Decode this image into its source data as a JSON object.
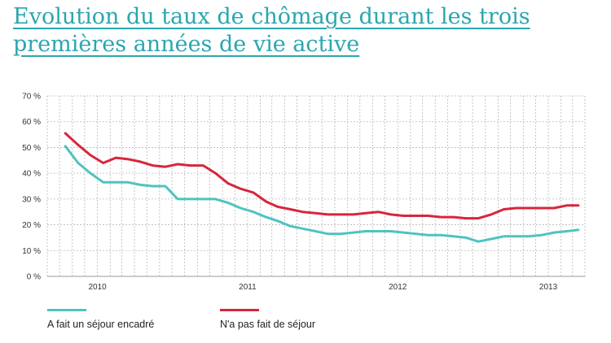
{
  "title_line1": "Evolution du taux de chômage durant les trois",
  "title_line2": "premières années de vie active",
  "colors": {
    "title": "#2aa6b0",
    "series_a": "#4fc3c1",
    "series_b": "#d7263d",
    "grid": "#b8b8b8"
  },
  "chart_data": {
    "type": "line",
    "ylim": [
      0,
      70
    ],
    "yticks": [
      "0 %",
      "10 %",
      "20 %",
      "30 %",
      "40 %",
      "50 %",
      "60 %",
      "70 %"
    ],
    "xticks": [
      "2010",
      "2011",
      "2012",
      "2013"
    ],
    "x": [
      "2009-10",
      "2009-11",
      "2009-12",
      "2010-01",
      "2010-02",
      "2010-03",
      "2010-04",
      "2010-05",
      "2010-06",
      "2010-07",
      "2010-08",
      "2010-09",
      "2010-10",
      "2010-11",
      "2010-12",
      "2011-01",
      "2011-02",
      "2011-03",
      "2011-04",
      "2011-05",
      "2011-06",
      "2011-07",
      "2011-08",
      "2011-09",
      "2011-10",
      "2011-11",
      "2011-12",
      "2012-01",
      "2012-02",
      "2012-03",
      "2012-04",
      "2012-05",
      "2012-06",
      "2012-07",
      "2012-08",
      "2012-09",
      "2012-10",
      "2012-11",
      "2012-12",
      "2013-01",
      "2013-02",
      "2013-03"
    ],
    "series": [
      {
        "name": "A fait un séjour encadré",
        "color": "#4fc3c1",
        "values": [
          50.5,
          44,
          40,
          36.5,
          36.5,
          36.5,
          35.5,
          35,
          35,
          30,
          30,
          30,
          30,
          28.5,
          26.5,
          25,
          23,
          21.5,
          19.5,
          18.5,
          17.5,
          16.5,
          16.5,
          17,
          17.5,
          17.5,
          17.5,
          17,
          16.5,
          16,
          16,
          15.5,
          15,
          13.5,
          14.5,
          15.5,
          15.5,
          15.5,
          16,
          17,
          17.5,
          18
        ]
      },
      {
        "name": "N'a pas fait de séjour",
        "color": "#d7263d",
        "values": [
          55.5,
          51,
          47,
          44,
          46,
          45.5,
          44.5,
          43,
          42.5,
          43.5,
          43,
          43,
          40,
          36,
          34,
          32.5,
          29,
          27,
          26,
          25,
          24.5,
          24,
          24,
          24,
          24.5,
          25,
          24,
          23.5,
          23.5,
          23.5,
          23,
          23,
          22.5,
          22.5,
          24,
          26,
          26.5,
          26.5,
          26.5,
          26.5,
          27.5,
          27.5
        ]
      }
    ]
  },
  "legend": {
    "a_label": "A fait un séjour encadré",
    "b_label": "N'a pas fait de séjour"
  }
}
